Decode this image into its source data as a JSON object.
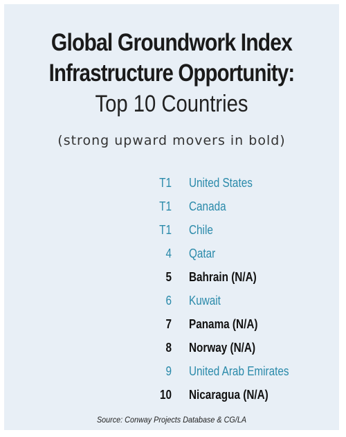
{
  "title": {
    "line1": "Global Groundwork Index",
    "line2": "Infrastructure Opportunity:",
    "line3": "Top 10 Countries"
  },
  "subtitle": "(strong upward movers in bold)",
  "colors": {
    "background_panel": "#e8eff6",
    "standard_entry": "#2a8aaa",
    "bold_entry": "#111111"
  },
  "rankings": [
    {
      "rank": "T1",
      "country": "United States",
      "bold": false
    },
    {
      "rank": "T1",
      "country": "Canada",
      "bold": false
    },
    {
      "rank": "T1",
      "country": "Chile",
      "bold": false
    },
    {
      "rank": "4",
      "country": "Qatar",
      "bold": false
    },
    {
      "rank": "5",
      "country": "Bahrain (N/A)",
      "bold": true
    },
    {
      "rank": "6",
      "country": "Kuwait",
      "bold": false
    },
    {
      "rank": "7",
      "country": "Panama (N/A)",
      "bold": true
    },
    {
      "rank": "8",
      "country": "Norway (N/A)",
      "bold": true
    },
    {
      "rank": "9",
      "country": "United Arab Emirates",
      "bold": false
    },
    {
      "rank": "10",
      "country": "Nicaragua (N/A)",
      "bold": true
    }
  ],
  "source": "Source: Conway Projects Database & CG/LA"
}
